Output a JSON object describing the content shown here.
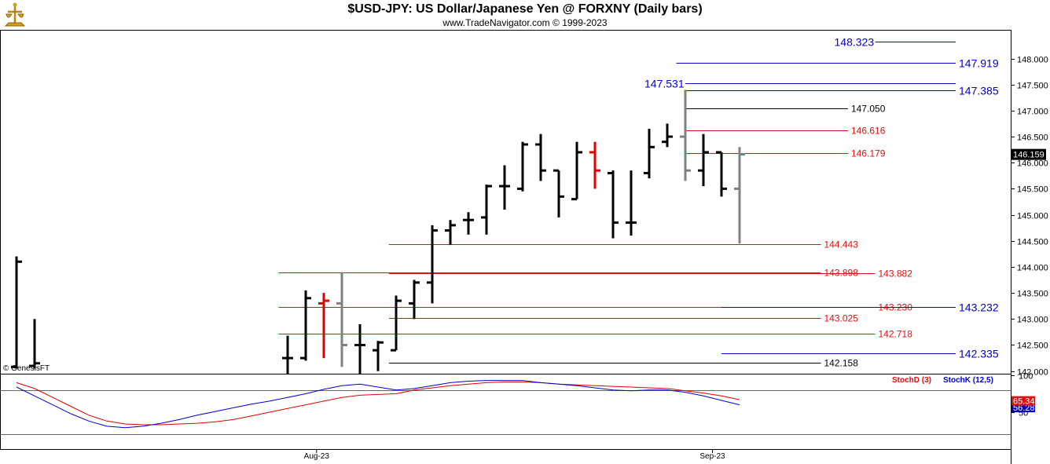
{
  "header": {
    "title": "$USD-JPY:  US Dollar/Japanese Yen @ FORXNY  (Daily bars)",
    "subtitle": "www.TradeNavigator.com © 1999-2023",
    "watermark": "© GenesisFT"
  },
  "colors": {
    "black": "#000000",
    "red": "#e00000",
    "gray": "#808080",
    "blue": "#0000cc",
    "fib_red": "#dd1111",
    "purple": "#7700aa"
  },
  "chart_data": [
    {
      "type": "ohlc",
      "name": "price",
      "ylim": [
        141.95,
        148.55
      ],
      "y_ticks": [
        "142.000",
        "142.500",
        "143.000",
        "143.500",
        "144.000",
        "144.500",
        "145.000",
        "145.500",
        "146.000",
        "146.500",
        "147.000",
        "147.500",
        "148.000"
      ],
      "x_ticks": [
        {
          "index": 16.6,
          "label": "Aug-23"
        },
        {
          "index": 38.5,
          "label": "Sep-23"
        }
      ],
      "last_price": "146.159",
      "bars": [
        {
          "i": 0,
          "o": 142.08,
          "h": 144.2,
          "l": 142.05,
          "c": 144.1,
          "color": "black"
        },
        {
          "i": 1,
          "o": 142.1,
          "h": 143.0,
          "l": 142.05,
          "c": 142.15,
          "color": "black"
        },
        {
          "i": 15,
          "o": 142.25,
          "h": 142.68,
          "l": 141.95,
          "c": 142.25,
          "color": "black"
        },
        {
          "i": 16,
          "o": 142.25,
          "h": 143.55,
          "l": 142.2,
          "c": 143.4,
          "color": "black"
        },
        {
          "i": 17,
          "o": 143.3,
          "h": 143.5,
          "l": 142.25,
          "c": 143.35,
          "color": "red"
        },
        {
          "i": 18,
          "o": 143.3,
          "h": 143.9,
          "l": 142.08,
          "c": 142.5,
          "color": "gray"
        },
        {
          "i": 19,
          "o": 142.5,
          "h": 142.9,
          "l": 141.95,
          "c": 142.5,
          "color": "black"
        },
        {
          "i": 20,
          "o": 142.4,
          "h": 142.58,
          "l": 142.0,
          "c": 142.55,
          "color": "black"
        },
        {
          "i": 21,
          "o": 142.4,
          "h": 143.45,
          "l": 142.4,
          "c": 143.35,
          "color": "black"
        },
        {
          "i": 22,
          "o": 143.3,
          "h": 143.75,
          "l": 143.0,
          "c": 143.7,
          "color": "black"
        },
        {
          "i": 23,
          "o": 143.7,
          "h": 144.8,
          "l": 143.3,
          "c": 144.7,
          "color": "black"
        },
        {
          "i": 24,
          "o": 144.7,
          "h": 144.9,
          "l": 144.42,
          "c": 144.8,
          "color": "black"
        },
        {
          "i": 25,
          "o": 144.9,
          "h": 145.05,
          "l": 144.62,
          "c": 144.9,
          "color": "black"
        },
        {
          "i": 26,
          "o": 144.95,
          "h": 145.58,
          "l": 144.62,
          "c": 145.55,
          "color": "black"
        },
        {
          "i": 27,
          "o": 145.55,
          "h": 145.95,
          "l": 145.1,
          "c": 145.55,
          "color": "black"
        },
        {
          "i": 28,
          "o": 145.5,
          "h": 146.4,
          "l": 145.45,
          "c": 146.35,
          "color": "black"
        },
        {
          "i": 29,
          "o": 146.35,
          "h": 146.55,
          "l": 145.65,
          "c": 145.85,
          "color": "black"
        },
        {
          "i": 30,
          "o": 145.85,
          "h": 145.85,
          "l": 144.95,
          "c": 145.35,
          "color": "black"
        },
        {
          "i": 31,
          "o": 145.3,
          "h": 146.4,
          "l": 145.3,
          "c": 146.2,
          "color": "black"
        },
        {
          "i": 32,
          "o": 146.2,
          "h": 146.4,
          "l": 145.5,
          "c": 145.85,
          "color": "red"
        },
        {
          "i": 33,
          "o": 145.8,
          "h": 145.85,
          "l": 144.55,
          "c": 144.85,
          "color": "black"
        },
        {
          "i": 34,
          "o": 144.85,
          "h": 145.85,
          "l": 144.6,
          "c": 144.85,
          "color": "black"
        },
        {
          "i": 35,
          "o": 145.8,
          "h": 146.65,
          "l": 145.7,
          "c": 146.3,
          "color": "black"
        },
        {
          "i": 36,
          "o": 146.4,
          "h": 146.75,
          "l": 146.3,
          "c": 146.5,
          "color": "black"
        },
        {
          "i": 37,
          "o": 146.5,
          "h": 147.4,
          "l": 145.65,
          "c": 145.85,
          "color": "gray"
        },
        {
          "i": 38,
          "o": 145.85,
          "h": 146.55,
          "l": 145.55,
          "c": 146.2,
          "color": "black"
        },
        {
          "i": 39,
          "o": 146.2,
          "h": 146.2,
          "l": 145.35,
          "c": 145.5,
          "color": "black"
        },
        {
          "i": 40,
          "o": 145.5,
          "h": 146.3,
          "l": 144.45,
          "c": 146.16,
          "color": "gray"
        }
      ],
      "levels": [
        {
          "value": 148.323,
          "label": "148.323",
          "color": "blue",
          "side": "left",
          "x0": 47.5,
          "x1": 70,
          "size": 14
        },
        {
          "value": 147.919,
          "label": "147.919",
          "color": "blue",
          "side": "right",
          "x0": 36.5,
          "x1": 70,
          "size": 14
        },
        {
          "value": 147.531,
          "label": "147.531",
          "color": "blue",
          "side": "left",
          "x0": 37,
          "x1": 70,
          "size": 14
        },
        {
          "value": 147.385,
          "label": "147.385",
          "color": "blue",
          "side": "right",
          "x0": 37,
          "x1": 70,
          "size": 14
        },
        {
          "value": 147.05,
          "label": "147.050",
          "color": "black",
          "side": "right",
          "x0": 37,
          "x1": 46,
          "size": 12
        },
        {
          "value": 146.616,
          "label": "146.616",
          "color": "fib_red",
          "side": "right",
          "x0": 37,
          "x1": 46,
          "size": 12
        },
        {
          "value": 146.179,
          "label": "146.179",
          "color": "fib_red",
          "side": "right",
          "x0": 37,
          "x1": 46,
          "size": 12
        },
        {
          "value": 144.443,
          "label": "144.443",
          "color": "fib_red",
          "side": "right",
          "x0": 20.6,
          "x1": 44.5,
          "size": 12
        },
        {
          "value": 143.898,
          "label": "143.898",
          "color": "fib_red",
          "side": "right",
          "x0": 14.5,
          "x1": 44.5,
          "size": 12
        },
        {
          "value": 143.882,
          "label": "143.882",
          "color": "fib_red",
          "side": "right",
          "x0": 20.6,
          "x1": 47.5,
          "size": 12
        },
        {
          "value": 143.23,
          "label": "143.230",
          "color": "fib_red",
          "side": "right",
          "x0": 14.5,
          "x1": 47.5,
          "size": 12
        },
        {
          "value": 143.232,
          "label": "143.232",
          "color": "blue",
          "side": "right",
          "x0": 39,
          "x1": 70,
          "size": 14
        },
        {
          "value": 143.025,
          "label": "143.025",
          "color": "fib_red",
          "side": "right",
          "x0": 20.6,
          "x1": 44.5,
          "size": 12
        },
        {
          "value": 142.718,
          "label": "142.718",
          "color": "fib_red",
          "side": "right",
          "x0": 14.5,
          "x1": 47.5,
          "size": 12
        },
        {
          "value": 142.335,
          "label": "142.335",
          "color": "blue",
          "side": "right",
          "x0": 39,
          "x1": 70,
          "size": 14
        },
        {
          "value": 142.158,
          "label": "142.158",
          "color": "black",
          "side": "right",
          "x0": 20.6,
          "x1": 44.5,
          "size": 12
        }
      ]
    },
    {
      "type": "line",
      "name": "stochastic",
      "ylim": [
        0,
        100
      ],
      "y_ticks": [
        "100",
        "50"
      ],
      "legend": [
        "StochD (3)",
        "StochK (12,5)"
      ],
      "values_shown": [
        "65.34",
        "56.28"
      ],
      "series": [
        {
          "name": "StochD (3)",
          "color": "red",
          "x": [
            0,
            1,
            2,
            3,
            4,
            5,
            6,
            7,
            8,
            9,
            10,
            11,
            12,
            13,
            14,
            15,
            16,
            17,
            18,
            19,
            20,
            21,
            22,
            23,
            24,
            25,
            26,
            27,
            28,
            29,
            30,
            31,
            32,
            33,
            34,
            35,
            36,
            37,
            38,
            39,
            40
          ],
          "values": [
            90,
            82,
            70,
            58,
            46,
            38,
            34,
            33,
            33,
            34,
            35,
            37,
            40,
            45,
            50,
            55,
            60,
            65,
            70,
            73,
            74,
            75,
            80,
            83,
            86,
            88,
            90,
            91,
            91,
            90,
            88,
            87,
            86,
            85,
            84,
            83,
            82,
            79,
            76,
            72,
            67
          ]
        },
        {
          "name": "StochK (12,5)",
          "color": "blue",
          "x": [
            0,
            1,
            2,
            3,
            4,
            5,
            6,
            7,
            8,
            9,
            10,
            11,
            12,
            13,
            14,
            15,
            16,
            17,
            18,
            19,
            20,
            21,
            22,
            23,
            24,
            25,
            26,
            27,
            28,
            29,
            30,
            31,
            32,
            33,
            34,
            35,
            36,
            37,
            38,
            39,
            40
          ],
          "values": [
            84,
            72,
            60,
            48,
            38,
            31,
            29,
            31,
            35,
            40,
            46,
            51,
            56,
            61,
            65,
            70,
            75,
            81,
            86,
            88,
            84,
            80,
            82,
            86,
            90,
            92,
            93,
            93,
            93,
            90,
            88,
            86,
            83,
            80,
            79,
            80,
            80,
            77,
            72,
            66,
            60
          ]
        }
      ]
    }
  ]
}
